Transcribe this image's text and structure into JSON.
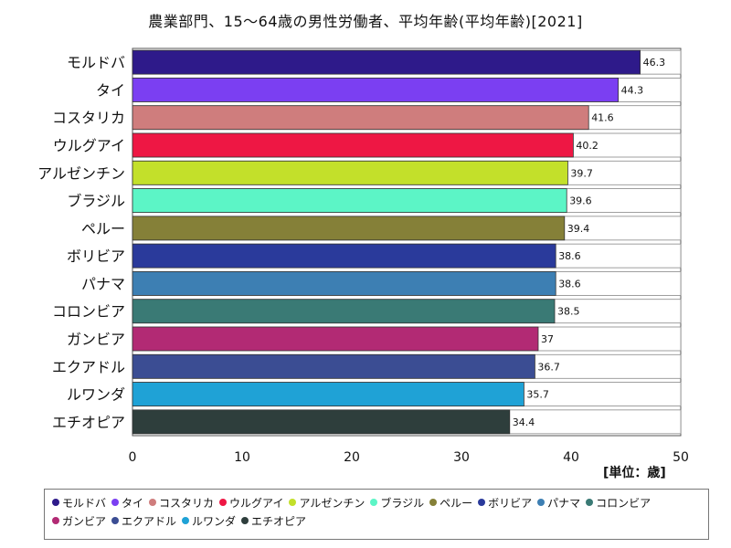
{
  "chart_data": {
    "type": "bar",
    "orientation": "horizontal",
    "title": "農業部門、15〜64歳の男性労働者、平均年齢(平均年齢)[2021]",
    "unit_label": "[単位：歳]",
    "xlim": [
      0,
      50
    ],
    "ticks": [
      0,
      10,
      20,
      30,
      40,
      50
    ],
    "grid": false,
    "legend_position": "bottom",
    "categories": [
      "モルドバ",
      "タイ",
      "コスタリカ",
      "ウルグアイ",
      "アルゼンチン",
      "ブラジル",
      "ペルー",
      "ボリビア",
      "パナマ",
      "コロンビア",
      "ガンビア",
      "エクアドル",
      "ルワンダ",
      "エチオピア"
    ],
    "values": [
      46.3,
      44.3,
      41.6,
      40.2,
      39.7,
      39.6,
      39.4,
      38.6,
      38.6,
      38.5,
      37,
      36.7,
      35.7,
      34.4
    ],
    "colors": [
      "#2e1a8a",
      "#7b3ff2",
      "#cf7d7d",
      "#ee1744",
      "#c3e02a",
      "#5cf5c6",
      "#858038",
      "#2a3a9b",
      "#3d7fb3",
      "#3a7a75",
      "#b22a74",
      "#3b4d93",
      "#1fa2d6",
      "#2e3e3c"
    ]
  }
}
